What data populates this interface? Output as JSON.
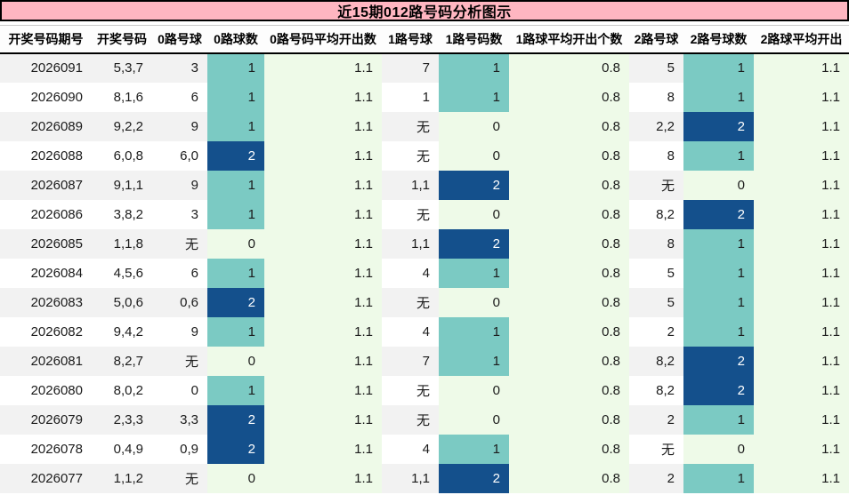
{
  "title": "近15期012路号码分析图示",
  "colors": {
    "banner_bg": "#ffb6c1",
    "banner_border": "#000000",
    "row_odd_bg": "#f2f2f2",
    "row_even_bg": "#ffffff",
    "avg_col_bg": "#eefae8",
    "count0_bg": "#eefae8",
    "count1_bg": "#7bcac3",
    "count2_bg": "#14508c",
    "count2_text": "#ffffff",
    "text": "#1b1b1b"
  },
  "chart_data": {
    "type": "table",
    "title": "近15期012路号码分析图示",
    "legend": "count cells: 0 = pale green, 1 = teal, 2 = dark blue",
    "columns": [
      "开奖号码期号",
      "开奖号码",
      "0路号球",
      "0路球数",
      "0路号码平均开出数",
      "1路号球",
      "1路号码数",
      "1路球平均开出个数",
      "2路号球",
      "2路号球数",
      "2路球平均开出"
    ],
    "rows": [
      [
        "2026091",
        "5,3,7",
        "3",
        1,
        1.1,
        "7",
        1,
        0.8,
        "5",
        1,
        1.1
      ],
      [
        "2026090",
        "8,1,6",
        "6",
        1,
        1.1,
        "1",
        1,
        0.8,
        "8",
        1,
        1.1
      ],
      [
        "2026089",
        "9,2,2",
        "9",
        1,
        1.1,
        "无",
        0,
        0.8,
        "2,2",
        2,
        1.1
      ],
      [
        "2026088",
        "6,0,8",
        "6,0",
        2,
        1.1,
        "无",
        0,
        0.8,
        "8",
        1,
        1.1
      ],
      [
        "2026087",
        "9,1,1",
        "9",
        1,
        1.1,
        "1,1",
        2,
        0.8,
        "无",
        0,
        1.1
      ],
      [
        "2026086",
        "3,8,2",
        "3",
        1,
        1.1,
        "无",
        0,
        0.8,
        "8,2",
        2,
        1.1
      ],
      [
        "2026085",
        "1,1,8",
        "无",
        0,
        1.1,
        "1,1",
        2,
        0.8,
        "8",
        1,
        1.1
      ],
      [
        "2026084",
        "4,5,6",
        "6",
        1,
        1.1,
        "4",
        1,
        0.8,
        "5",
        1,
        1.1
      ],
      [
        "2026083",
        "5,0,6",
        "0,6",
        2,
        1.1,
        "无",
        0,
        0.8,
        "5",
        1,
        1.1
      ],
      [
        "2026082",
        "9,4,2",
        "9",
        1,
        1.1,
        "4",
        1,
        0.8,
        "2",
        1,
        1.1
      ],
      [
        "2026081",
        "8,2,7",
        "无",
        0,
        1.1,
        "7",
        1,
        0.8,
        "8,2",
        2,
        1.1
      ],
      [
        "2026080",
        "8,0,2",
        "0",
        1,
        1.1,
        "无",
        0,
        0.8,
        "8,2",
        2,
        1.1
      ],
      [
        "2026079",
        "2,3,3",
        "3,3",
        2,
        1.1,
        "无",
        0,
        0.8,
        "2",
        1,
        1.1
      ],
      [
        "2026078",
        "0,4,9",
        "0,9",
        2,
        1.1,
        "4",
        1,
        0.8,
        "无",
        0,
        1.1
      ],
      [
        "2026077",
        "1,1,2",
        "无",
        0,
        1.1,
        "1,1",
        2,
        0.8,
        "2",
        1,
        1.1
      ]
    ]
  }
}
